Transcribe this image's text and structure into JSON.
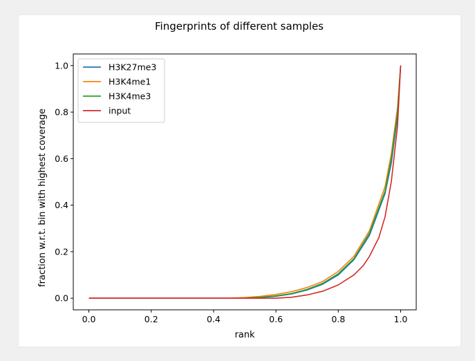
{
  "chart_data": {
    "type": "line",
    "title": "Fingerprints of different samples",
    "xlabel": "rank",
    "ylabel": "fraction w.r.t. bin with highest coverage",
    "xlim": [
      -0.05,
      1.05
    ],
    "ylim": [
      -0.05,
      1.05
    ],
    "xticks": [
      0.0,
      0.2,
      0.4,
      0.6,
      0.8,
      1.0
    ],
    "xtick_labels": [
      "0.0",
      "0.2",
      "0.4",
      "0.6",
      "0.8",
      "1.0"
    ],
    "yticks": [
      0.0,
      0.2,
      0.4,
      0.6,
      0.8,
      1.0
    ],
    "ytick_labels": [
      "0.0",
      "0.2",
      "0.4",
      "0.6",
      "0.8",
      "1.0"
    ],
    "legend_position": "top-left",
    "series": [
      {
        "name": "H3K27me3",
        "color": "#1f77b4",
        "x": [
          0.0,
          0.5,
          0.55,
          0.6,
          0.65,
          0.7,
          0.75,
          0.8,
          0.85,
          0.9,
          0.95,
          0.97,
          0.99,
          1.0
        ],
        "y": [
          0.0,
          0.0,
          0.003,
          0.008,
          0.018,
          0.035,
          0.06,
          0.1,
          0.165,
          0.27,
          0.45,
          0.58,
          0.78,
          1.0
        ]
      },
      {
        "name": "H3K4me1",
        "color": "#ff7f0e",
        "x": [
          0.0,
          0.45,
          0.5,
          0.55,
          0.6,
          0.65,
          0.7,
          0.75,
          0.8,
          0.85,
          0.9,
          0.95,
          0.97,
          0.99,
          1.0
        ],
        "y": [
          0.0,
          0.0,
          0.003,
          0.008,
          0.016,
          0.028,
          0.046,
          0.072,
          0.115,
          0.18,
          0.29,
          0.48,
          0.62,
          0.82,
          1.0
        ]
      },
      {
        "name": "H3K4me3",
        "color": "#2ca02c",
        "x": [
          0.0,
          0.5,
          0.55,
          0.6,
          0.65,
          0.7,
          0.75,
          0.8,
          0.85,
          0.9,
          0.95,
          0.97,
          0.99,
          1.0
        ],
        "y": [
          0.0,
          0.0,
          0.004,
          0.01,
          0.02,
          0.038,
          0.064,
          0.105,
          0.17,
          0.28,
          0.46,
          0.6,
          0.8,
          1.0
        ]
      },
      {
        "name": "input",
        "color": "#d62728",
        "x": [
          0.0,
          0.6,
          0.65,
          0.7,
          0.75,
          0.8,
          0.85,
          0.88,
          0.9,
          0.93,
          0.95,
          0.97,
          0.99,
          1.0
        ],
        "y": [
          0.0,
          0.0,
          0.004,
          0.014,
          0.03,
          0.057,
          0.1,
          0.14,
          0.18,
          0.26,
          0.35,
          0.5,
          0.74,
          1.0
        ]
      }
    ]
  }
}
